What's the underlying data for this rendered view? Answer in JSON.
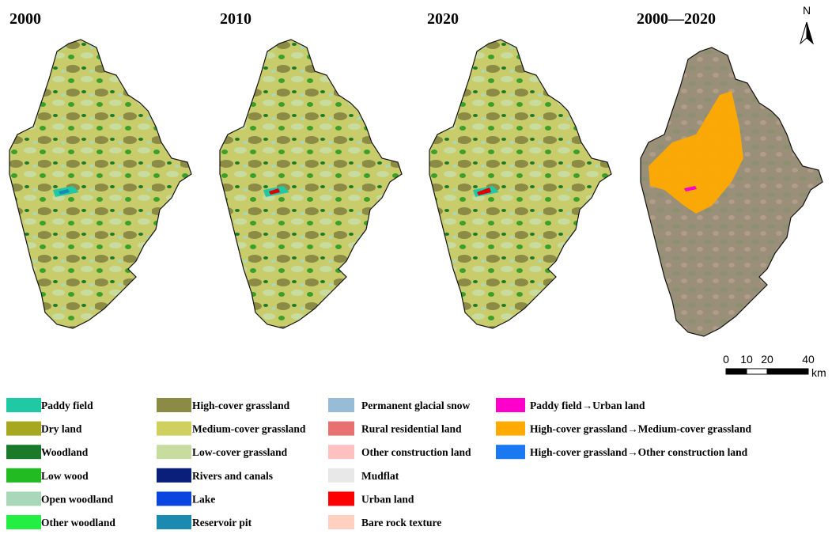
{
  "panels": [
    {
      "title": "2000"
    },
    {
      "title": "2010"
    },
    {
      "title": "2020"
    },
    {
      "title": "2000—2020"
    }
  ],
  "north_arrow": {
    "label": "N"
  },
  "scale_bar": {
    "ticks": [
      0,
      10,
      20,
      40
    ],
    "unit": "km"
  },
  "legend": [
    [
      {
        "label": "Paddy field",
        "color": "#20c9a6"
      },
      {
        "label": "Dry land",
        "color": "#a8a820"
      },
      {
        "label": "Woodland",
        "color": "#1a7a2a"
      },
      {
        "label": "Low wood",
        "color": "#22bb22"
      },
      {
        "label": "Open woodland",
        "color": "#a8d8b8"
      },
      {
        "label": "Other woodland",
        "color": "#22ee44"
      }
    ],
    [
      {
        "label": "High-cover grassland",
        "color": "#8b8b45"
      },
      {
        "label": "Medium-cover grassland",
        "color": "#d0d060"
      },
      {
        "label": "Low-cover grassland",
        "color": "#c8dca0"
      },
      {
        "label": "Rivers and canals",
        "color": "#0a1f7a"
      },
      {
        "label": "Lake",
        "color": "#0a45e0"
      },
      {
        "label": "Reservoir pit",
        "color": "#1a8ab0"
      }
    ],
    [
      {
        "label": "Permanent glacial snow",
        "color": "#98bcd8"
      },
      {
        "label": "Rural residential land",
        "color": "#e87070"
      },
      {
        "label": "Other construction land",
        "color": "#ffc0c0"
      },
      {
        "label": "Mudflat",
        "color": "#e8e8e8"
      },
      {
        "label": "Urban land",
        "color": "#ff0000"
      },
      {
        "label": "Bare rock texture",
        "color": "#ffd0c0"
      }
    ],
    [
      {
        "label": "Paddy field→Urban land",
        "color": "#ff00cc"
      },
      {
        "label": "High-cover grassland→Medium-cover grassland",
        "color": "#ffaa00"
      },
      {
        "label": "High-cover grassland→Other construction land",
        "color": "#1a78f0"
      }
    ]
  ]
}
